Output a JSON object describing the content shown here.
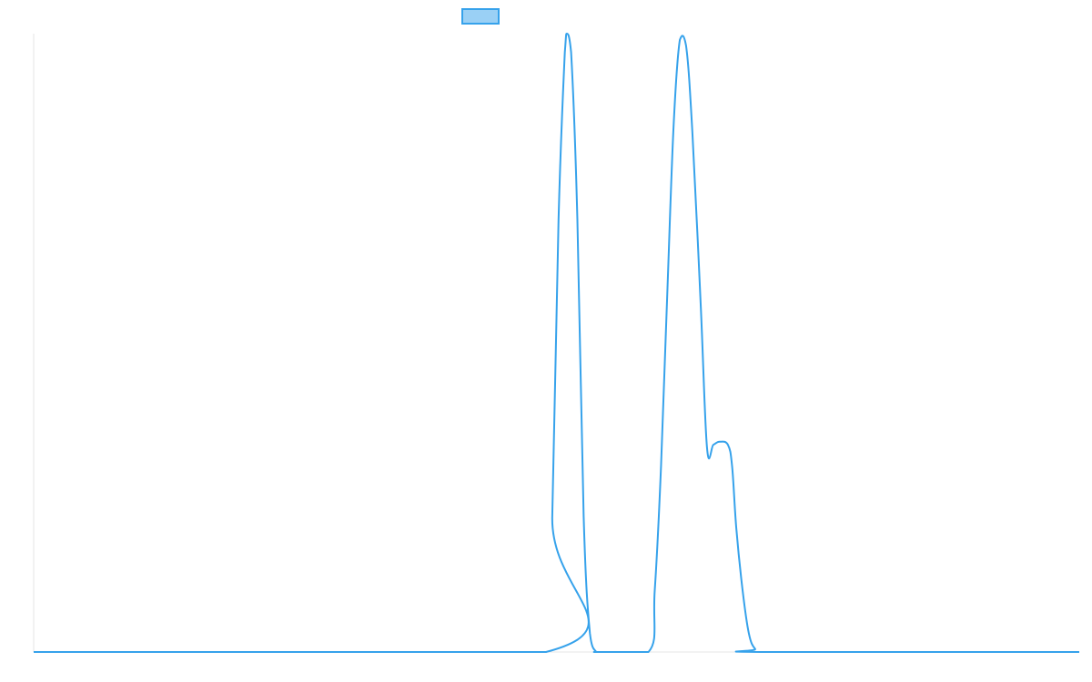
{
  "chart_data": {
    "type": "line",
    "xlim": [
      0,
      50
    ],
    "ylim": [
      0,
      1
    ],
    "grid": false,
    "legend_placement": "top-center",
    "series": [
      {
        "color": "#36a2eb",
        "legend_fill": "#9ad0f5",
        "x": [
          0,
          24.5,
          24.8,
          25.1,
          25.4,
          25.5,
          25.7,
          26.0,
          26.3,
          26.6,
          26.9,
          27.0,
          29.4,
          29.7,
          30.0,
          30.3,
          30.6,
          30.9,
          31.2,
          31.5,
          31.9,
          32.2,
          32.5,
          32.8,
          33.2,
          33.4,
          33.6,
          33.9,
          34.2,
          34.5,
          34.9,
          50
        ],
        "values": [
          0,
          0,
          0.22,
          0.7,
          0.97,
          1.0,
          0.97,
          0.7,
          0.22,
          0.03,
          0,
          0,
          0,
          0.1,
          0.3,
          0.58,
          0.85,
          0.99,
          0.98,
          0.84,
          0.56,
          0.33,
          0.335,
          0.34,
          0.335,
          0.3,
          0.2,
          0.1,
          0.03,
          0.005,
          0,
          0
        ]
      }
    ]
  }
}
